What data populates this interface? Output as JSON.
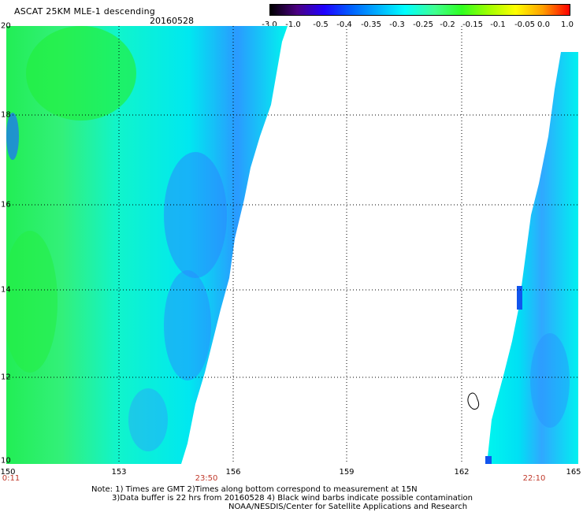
{
  "header": {
    "title": "ASCAT 25KM MLE-1 descending",
    "date": "20160528"
  },
  "colorbar": {
    "labels": [
      "-3.0",
      "-1.0",
      "-0.5",
      "-0.4",
      "-0.35",
      "-0.3",
      "-0.25",
      "-0.2",
      "-0.15",
      "-0.1",
      "-0.05",
      "0.0",
      "1.0"
    ],
    "colors": [
      "#000000",
      "#4b0082",
      "#2000ff",
      "#0060ff",
      "#00b0ff",
      "#00ffff",
      "#40ff90",
      "#30ff20",
      "#a0ff00",
      "#ffff00",
      "#ffa000",
      "#ff0000"
    ]
  },
  "map": {
    "lat_labels": [
      "20",
      "18",
      "16",
      "14",
      "12",
      "10"
    ],
    "lon_labels": [
      "150",
      "153",
      "156",
      "159",
      "162",
      "165"
    ],
    "time_labels": [
      "0:11",
      "23:50",
      "22:10"
    ],
    "palette": {
      "green": "#22ee55",
      "cyan": "#00f5ee",
      "blue": "#1f7dff",
      "darkblue": "#1155ee"
    }
  },
  "footer": {
    "note1": "Note: 1) Times are GMT 2)Times along bottom correspond to measurement at 15N",
    "note2": "3)Data buffer is 22 hrs from 20160528 4) Black wind barbs indicate possible contamination",
    "credit": "NOAA/NESDIS/Center for Satellite Applications and Research"
  }
}
